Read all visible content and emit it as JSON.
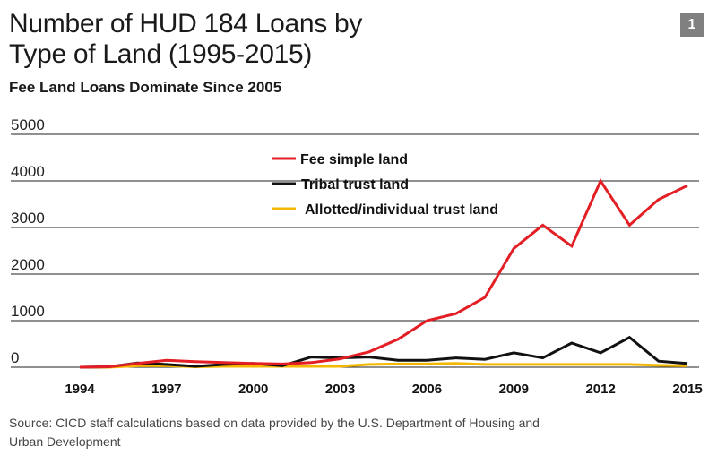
{
  "header": {
    "title_line1": "Number of HUD 184 Loans by",
    "title_line2": "Type of Land (1995-2015)",
    "subtitle": "Fee Land Loans Dominate Since 2005",
    "badge": "1"
  },
  "footer": {
    "source_line1": "Source: CICD staff calculations based on data provided by the U.S. Department of Housing and",
    "source_line2": "Urban Development"
  },
  "chart_data": {
    "type": "line",
    "title": "Number of HUD 184 Loans by Type of Land (1995-2015)",
    "subtitle": "Fee Land Loans Dominate Since 2005",
    "xlabel": "",
    "ylabel": "",
    "xlim": [
      1994,
      2015
    ],
    "ylim": [
      0,
      5000
    ],
    "y_ticks": [
      0,
      1000,
      2000,
      3000,
      4000,
      5000
    ],
    "x_ticks": [
      1994,
      1997,
      2000,
      2003,
      2006,
      2009,
      2012,
      2015
    ],
    "grid": "horizontal",
    "legend_position": "top-center",
    "x": [
      1994,
      1995,
      1996,
      1997,
      1998,
      1999,
      2000,
      2001,
      2002,
      2003,
      2004,
      2005,
      2006,
      2007,
      2008,
      2009,
      2010,
      2011,
      2012,
      2013,
      2014,
      2015
    ],
    "series": [
      {
        "name": "Fee simple land",
        "color": "#e31e24",
        "values": [
          0,
          10,
          80,
          150,
          120,
          100,
          80,
          70,
          100,
          180,
          330,
          600,
          1000,
          1150,
          1500,
          2550,
          3050,
          2600,
          4000,
          3050,
          3600,
          3900
        ]
      },
      {
        "name": "Tribal trust land",
        "color": "#111111",
        "values": [
          0,
          10,
          90,
          60,
          20,
          60,
          80,
          30,
          220,
          200,
          220,
          150,
          150,
          200,
          170,
          310,
          200,
          520,
          310,
          640,
          130,
          80
        ]
      },
      {
        "name": "Allotted/individual trust land",
        "color": "#f5b800",
        "values": [
          0,
          0,
          30,
          30,
          10,
          20,
          20,
          20,
          20,
          20,
          60,
          70,
          70,
          80,
          60,
          60,
          60,
          60,
          60,
          60,
          40,
          30
        ]
      }
    ]
  }
}
